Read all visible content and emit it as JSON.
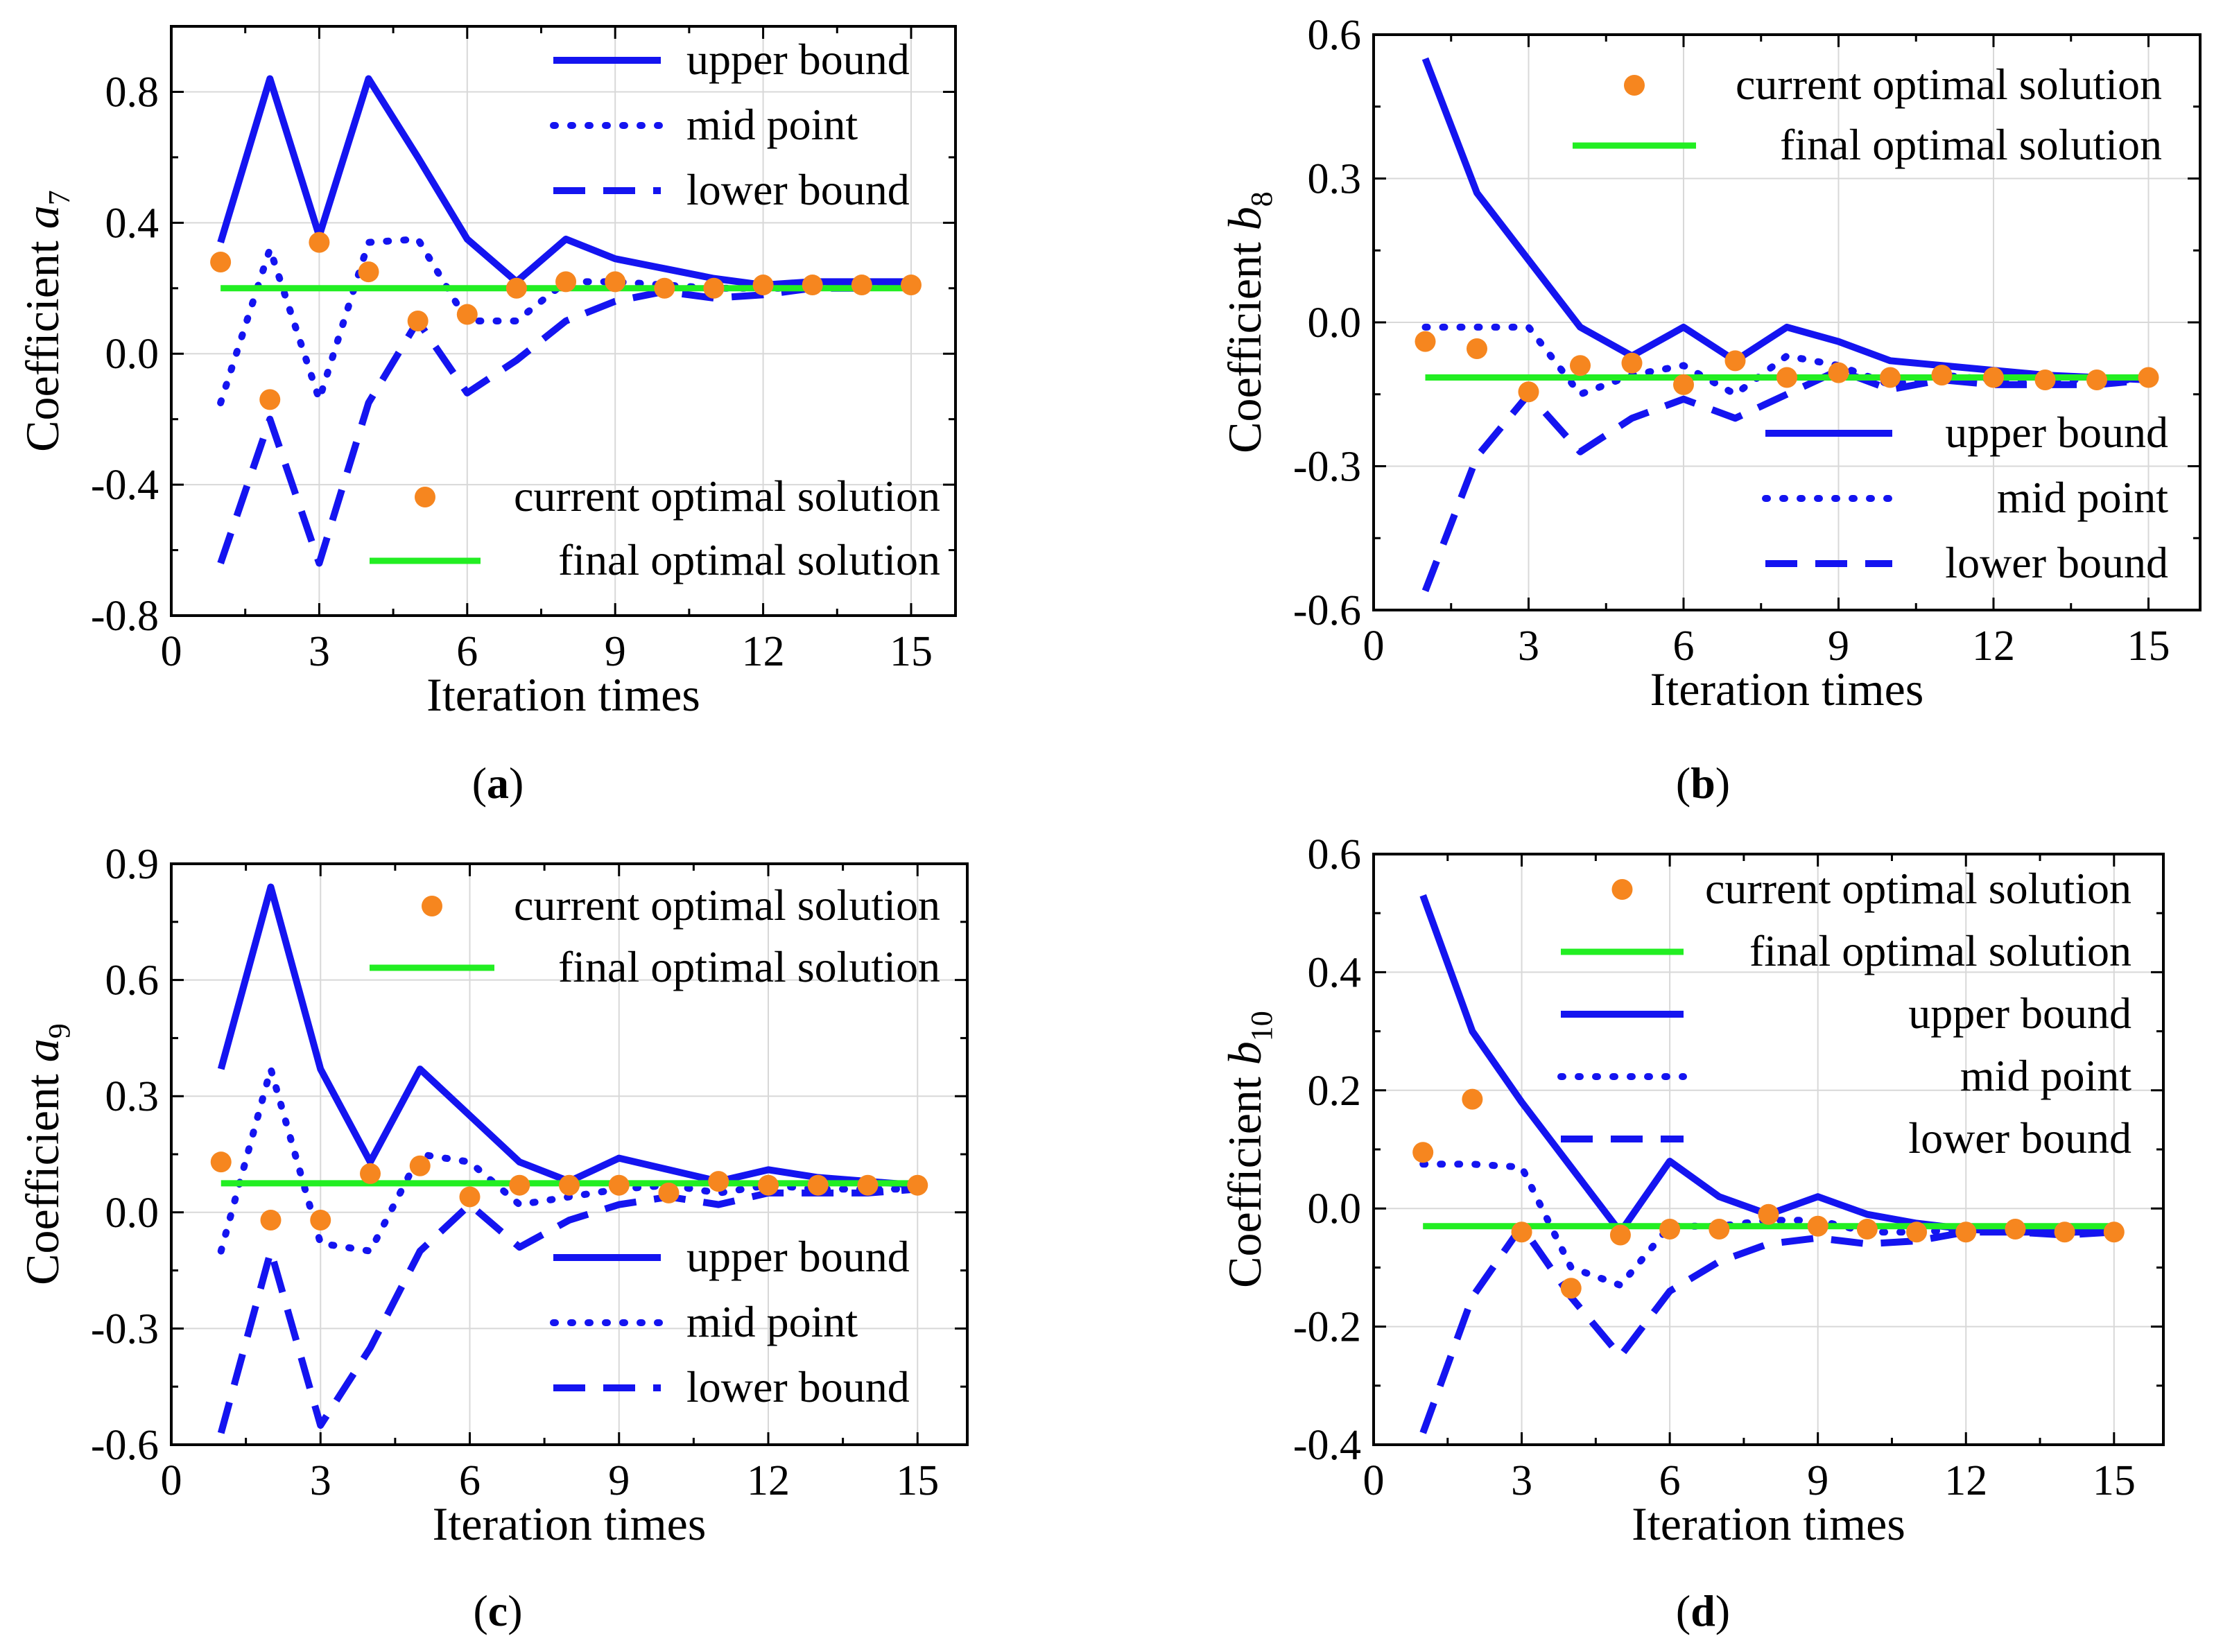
{
  "figure": {
    "panels": [
      {
        "panel_label": "a",
        "ylabel_main": "Coefficient ",
        "ylabel_sym": "a",
        "ylabel_sub": "7"
      },
      {
        "panel_label": "b",
        "ylabel_main": "Coefficient ",
        "ylabel_sym": "b",
        "ylabel_sub": "8"
      },
      {
        "panel_label": "c",
        "ylabel_main": "Coefficient ",
        "ylabel_sym": "a",
        "ylabel_sub": "9"
      },
      {
        "panel_label": "d",
        "ylabel_main": "Coefficient ",
        "ylabel_sym": "b",
        "ylabel_sub": "10"
      }
    ]
  },
  "colors": {
    "upper": "#1414f0",
    "mid": "#1414f0",
    "lower": "#1414f0",
    "current": "#f6861f",
    "final": "#22ee22"
  },
  "chart_data": [
    {
      "type": "line",
      "panel": "a",
      "xlabel": "Iteration times",
      "ylabel": "Coefficient a7",
      "xlim": [
        0,
        15.9
      ],
      "ylim": [
        -0.8,
        1.0
      ],
      "xticks": [
        0,
        3,
        6,
        9,
        12,
        15
      ],
      "xtick_labels": [
        "0",
        "3",
        "6",
        "9",
        "12",
        "15"
      ],
      "yticks": [
        -0.8,
        -0.4,
        0.0,
        0.4,
        0.8
      ],
      "ytick_labels": [
        "-0.8",
        "-0.4",
        "0.0",
        "0.4",
        "0.8"
      ],
      "grid": true,
      "x": [
        1,
        2,
        3,
        4,
        5,
        6,
        7,
        8,
        9,
        10,
        11,
        12,
        13,
        14,
        15
      ],
      "series": [
        {
          "name": "upper bound",
          "style": "solid",
          "values": [
            0.34,
            0.84,
            0.36,
            0.84,
            0.6,
            0.35,
            0.22,
            0.35,
            0.29,
            0.26,
            0.23,
            0.21,
            0.22,
            0.22,
            0.22
          ]
        },
        {
          "name": "mid point",
          "style": "dot",
          "values": [
            -0.15,
            0.32,
            -0.14,
            0.34,
            0.35,
            0.1,
            0.1,
            0.22,
            0.22,
            0.21,
            0.2,
            0.2,
            0.2,
            0.21,
            0.21
          ]
        },
        {
          "name": "lower bound",
          "style": "dash",
          "values": [
            -0.64,
            -0.2,
            -0.64,
            -0.15,
            0.1,
            -0.12,
            -0.02,
            0.1,
            0.16,
            0.19,
            0.17,
            0.18,
            0.2,
            0.2,
            0.21
          ]
        },
        {
          "name": "current optimal solution",
          "style": "marker",
          "values": [
            0.28,
            -0.14,
            0.34,
            0.25,
            0.1,
            0.12,
            0.2,
            0.22,
            0.22,
            0.2,
            0.2,
            0.21,
            0.21,
            0.21,
            0.21
          ]
        },
        {
          "name": "final optimal solution",
          "style": "hline",
          "x": [
            1,
            15
          ],
          "values": [
            0.2,
            0.2
          ]
        }
      ],
      "legends": [
        {
          "entries": [
            "upper bound",
            "mid point",
            "lower bound"
          ],
          "placement": "top-right"
        },
        {
          "entries": [
            "current optimal solution",
            "final optimal solution"
          ],
          "placement": "bottom-right"
        }
      ]
    },
    {
      "type": "line",
      "panel": "b",
      "xlabel": "Iteration times",
      "ylabel": "Coefficient b8",
      "xlim": [
        0,
        16
      ],
      "ylim": [
        -0.6,
        0.6
      ],
      "xticks": [
        0,
        3,
        6,
        9,
        12,
        15
      ],
      "xtick_labels": [
        "0",
        "3",
        "6",
        "9",
        "12",
        "15"
      ],
      "yticks": [
        -0.6,
        -0.3,
        0.0,
        0.3,
        0.6
      ],
      "ytick_labels": [
        "-0.6",
        "-0.3",
        "0.0",
        "0.3",
        "0.6"
      ],
      "grid": true,
      "x": [
        1,
        2,
        3,
        4,
        5,
        6,
        7,
        8,
        9,
        10,
        11,
        12,
        13,
        14,
        15
      ],
      "series": [
        {
          "name": "upper bound",
          "style": "solid",
          "values": [
            0.55,
            0.27,
            0.13,
            -0.01,
            -0.07,
            -0.01,
            -0.08,
            -0.01,
            -0.04,
            -0.08,
            -0.09,
            -0.1,
            -0.11,
            -0.115,
            -0.12
          ]
        },
        {
          "name": "mid point",
          "style": "dot",
          "values": [
            -0.01,
            -0.01,
            -0.01,
            -0.15,
            -0.11,
            -0.09,
            -0.15,
            -0.07,
            -0.09,
            -0.13,
            -0.11,
            -0.12,
            -0.12,
            -0.12,
            -0.12
          ]
        },
        {
          "name": "lower bound",
          "style": "dash",
          "values": [
            -0.56,
            -0.28,
            -0.15,
            -0.27,
            -0.2,
            -0.16,
            -0.2,
            -0.15,
            -0.1,
            -0.14,
            -0.12,
            -0.13,
            -0.13,
            -0.13,
            -0.12
          ]
        },
        {
          "name": "current optimal solution",
          "style": "marker",
          "values": [
            -0.04,
            -0.055,
            -0.145,
            -0.09,
            -0.085,
            -0.13,
            -0.08,
            -0.115,
            -0.105,
            -0.115,
            -0.11,
            -0.115,
            -0.12,
            -0.12,
            -0.115
          ]
        },
        {
          "name": "final optimal solution",
          "style": "hline",
          "x": [
            1,
            15
          ],
          "values": [
            -0.115,
            -0.115
          ]
        }
      ],
      "legends": [
        {
          "entries": [
            "current optimal solution",
            "final optimal solution"
          ],
          "placement": "top-right"
        },
        {
          "entries": [
            "upper bound",
            "mid point",
            "lower bound"
          ],
          "placement": "bottom-right"
        }
      ]
    },
    {
      "type": "line",
      "panel": "c",
      "xlabel": "Iteration times",
      "ylabel": "Coefficient a9",
      "xlim": [
        0,
        16
      ],
      "ylim": [
        -0.6,
        0.9
      ],
      "xticks": [
        0,
        3,
        6,
        9,
        12,
        15
      ],
      "xtick_labels": [
        "0",
        "3",
        "6",
        "9",
        "12",
        "15"
      ],
      "yticks": [
        -0.6,
        -0.3,
        0.0,
        0.3,
        0.6,
        0.9
      ],
      "ytick_labels": [
        "-0.6",
        "-0.3",
        "0.0",
        "0.3",
        "0.6",
        "0.9"
      ],
      "grid": true,
      "x": [
        1,
        2,
        3,
        4,
        5,
        6,
        7,
        8,
        9,
        10,
        11,
        12,
        13,
        14,
        15
      ],
      "series": [
        {
          "name": "upper bound",
          "style": "solid",
          "values": [
            0.37,
            0.84,
            0.37,
            0.13,
            0.37,
            0.25,
            0.13,
            0.08,
            0.14,
            0.11,
            0.08,
            0.11,
            0.09,
            0.08,
            0.07
          ]
        },
        {
          "name": "mid point",
          "style": "dot",
          "values": [
            -0.1,
            0.37,
            -0.08,
            -0.1,
            0.15,
            0.13,
            0.02,
            0.04,
            0.06,
            0.07,
            0.05,
            0.07,
            0.06,
            0.06,
            0.06
          ]
        },
        {
          "name": "lower bound",
          "style": "dash",
          "values": [
            -0.57,
            -0.1,
            -0.55,
            -0.35,
            -0.1,
            0.02,
            -0.09,
            -0.02,
            0.02,
            0.04,
            0.02,
            0.05,
            0.05,
            0.05,
            0.06
          ]
        },
        {
          "name": "current optimal solution",
          "style": "marker",
          "values": [
            0.13,
            -0.02,
            -0.02,
            0.1,
            0.12,
            0.04,
            0.07,
            0.07,
            0.07,
            0.05,
            0.08,
            0.07,
            0.07,
            0.07,
            0.07
          ]
        },
        {
          "name": "final optimal solution",
          "style": "hline",
          "x": [
            1,
            15
          ],
          "values": [
            0.075,
            0.075
          ]
        }
      ],
      "legends": [
        {
          "entries": [
            "current optimal solution",
            "final optimal solution"
          ],
          "placement": "top-right"
        },
        {
          "entries": [
            "upper bound",
            "mid point",
            "lower bound"
          ],
          "placement": "bottom-right"
        }
      ]
    },
    {
      "type": "line",
      "panel": "d",
      "xlabel": "Iteration times",
      "ylabel": "Coefficient b10",
      "xlim": [
        0,
        16
      ],
      "ylim": [
        -0.4,
        0.6
      ],
      "xticks": [
        0,
        3,
        6,
        9,
        12,
        15
      ],
      "xtick_labels": [
        "0",
        "3",
        "6",
        "9",
        "12",
        "15"
      ],
      "yticks": [
        -0.4,
        -0.2,
        0.0,
        0.2,
        0.4,
        0.6
      ],
      "ytick_labels": [
        "-0.4",
        "-0.2",
        "0.0",
        "0.2",
        "0.4",
        "0.6"
      ],
      "grid": true,
      "x": [
        1,
        2,
        3,
        4,
        5,
        6,
        7,
        8,
        9,
        10,
        11,
        12,
        13,
        14,
        15
      ],
      "series": [
        {
          "name": "upper bound",
          "style": "solid",
          "values": [
            0.53,
            0.3,
            0.18,
            0.07,
            -0.04,
            0.08,
            0.02,
            -0.01,
            0.02,
            -0.01,
            -0.025,
            -0.035,
            -0.04,
            -0.04,
            -0.04
          ]
        },
        {
          "name": "mid point",
          "style": "dot",
          "values": [
            0.075,
            0.075,
            0.07,
            -0.1,
            -0.13,
            -0.03,
            -0.03,
            -0.02,
            -0.02,
            -0.04,
            -0.04,
            -0.035,
            -0.04,
            -0.04,
            -0.04
          ]
        },
        {
          "name": "lower bound",
          "style": "dash",
          "values": [
            -0.38,
            -0.15,
            -0.03,
            -0.15,
            -0.25,
            -0.14,
            -0.09,
            -0.06,
            -0.05,
            -0.06,
            -0.055,
            -0.04,
            -0.04,
            -0.045,
            -0.04
          ]
        },
        {
          "name": "current optimal solution",
          "style": "marker",
          "values": [
            0.095,
            0.185,
            -0.04,
            -0.135,
            -0.045,
            -0.035,
            -0.035,
            -0.01,
            -0.03,
            -0.035,
            -0.04,
            -0.04,
            -0.035,
            -0.04,
            -0.04
          ]
        },
        {
          "name": "final optimal solution",
          "style": "hline",
          "x": [
            1,
            15
          ],
          "values": [
            -0.03,
            -0.03
          ]
        }
      ],
      "legends": [
        {
          "entries": [
            "current optimal solution",
            "final optimal solution",
            "upper bound",
            "mid point",
            "lower bound"
          ],
          "placement": "top-right"
        }
      ]
    }
  ]
}
